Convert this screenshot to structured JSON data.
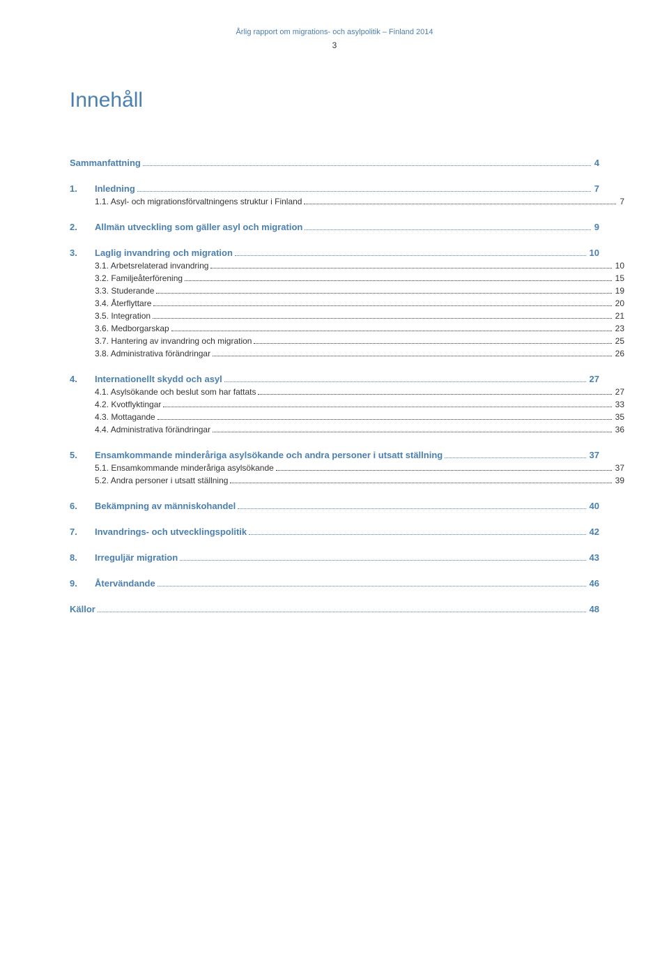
{
  "header": {
    "text": "Årlig rapport om migrations- och asylpolitik – Finland 2014",
    "page_number": "3",
    "color": "#4a7fb0"
  },
  "title": {
    "text": "Innehåll",
    "color": "#4a7fb0"
  },
  "styles": {
    "link_color": "#4a7fb0",
    "text_color": "#333333",
    "background": "#ffffff"
  },
  "toc": [
    {
      "type": "top",
      "num": "",
      "label": "Sammanfattning",
      "page": "4"
    },
    {
      "type": "top",
      "num": "1.",
      "label": "Inledning",
      "page": "7"
    },
    {
      "type": "sub",
      "num": "1.1. ",
      "label": "Asyl- och migrationsförvaltningens struktur i Finland",
      "page": "7"
    },
    {
      "type": "top",
      "num": "2.",
      "label": "Allmän utveckling som gäller asyl och migration",
      "page": "9"
    },
    {
      "type": "top",
      "num": "3.",
      "label": "Laglig invandring och migration",
      "page": "10"
    },
    {
      "type": "sub",
      "num": "3.1. ",
      "label": "Arbetsrelaterad invandring",
      "page": "10"
    },
    {
      "type": "sub",
      "num": "3.2. ",
      "label": "Familjeåterförening",
      "page": "15"
    },
    {
      "type": "sub",
      "num": "3.3. ",
      "label": "Studerande",
      "page": "19"
    },
    {
      "type": "sub",
      "num": "3.4. ",
      "label": "Återflyttare",
      "page": "20"
    },
    {
      "type": "sub",
      "num": "3.5. ",
      "label": "Integration",
      "page": "21"
    },
    {
      "type": "sub",
      "num": "3.6. ",
      "label": "Medborgarskap",
      "page": "23"
    },
    {
      "type": "sub",
      "num": "3.7. ",
      "label": "Hantering av invandring och migration",
      "page": "25"
    },
    {
      "type": "sub",
      "num": "3.8. ",
      "label": "Administrativa förändringar",
      "page": "26"
    },
    {
      "type": "top",
      "num": "4.",
      "label": "Internationellt skydd och asyl",
      "page": "27"
    },
    {
      "type": "sub",
      "num": "4.1. ",
      "label": "Asylsökande och beslut som har fattats",
      "page": "27"
    },
    {
      "type": "sub",
      "num": "4.2. ",
      "label": "Kvotflyktingar",
      "page": "33"
    },
    {
      "type": "sub",
      "num": "4.3. ",
      "label": "Mottagande",
      "page": "35"
    },
    {
      "type": "sub",
      "num": "4.4. ",
      "label": "Administrativa förändringar",
      "page": "36"
    },
    {
      "type": "top",
      "num": "5.",
      "label": "Ensamkommande minderåriga asylsökande och andra personer i utsatt ställning",
      "page": "37"
    },
    {
      "type": "sub",
      "num": "5.1. ",
      "label": "Ensamkommande minderåriga asylsökande",
      "page": "37"
    },
    {
      "type": "sub",
      "num": "5.2. ",
      "label": "Andra personer i utsatt ställning",
      "page": "39"
    },
    {
      "type": "top",
      "num": "6.",
      "label": "Bekämpning av människohandel",
      "page": "40"
    },
    {
      "type": "top",
      "num": "7.",
      "label": "Invandrings- och utvecklingspolitik",
      "page": "42"
    },
    {
      "type": "top",
      "num": "8.",
      "label": "Irreguljär migration",
      "page": "43"
    },
    {
      "type": "top",
      "num": "9.",
      "label": "Återvändande",
      "page": "46"
    },
    {
      "type": "kallor",
      "num": "",
      "label": "Källor",
      "page": "48"
    }
  ]
}
